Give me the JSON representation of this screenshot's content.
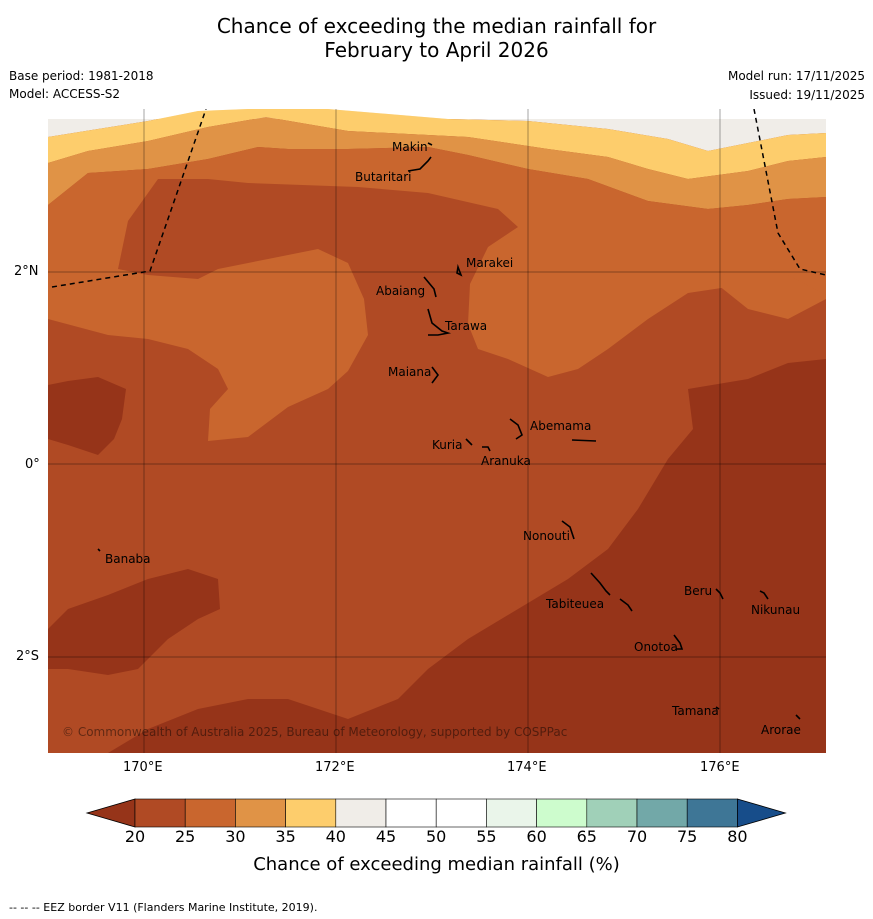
{
  "title_line1": "Chance of exceeding the median rainfall for",
  "title_line2": "February to April 2026",
  "meta": {
    "base_period": "Base period: 1981-2018",
    "model": "Model: ACCESS-S2",
    "model_run": "Model run: 17/11/2025",
    "issued": "Issued: 19/11/2025"
  },
  "axes": {
    "lat_ticks": [
      "2°N",
      "0°",
      "2°S"
    ],
    "lon_ticks": [
      "170°E",
      "172°E",
      "174°E",
      "176°E"
    ]
  },
  "places": {
    "makin": "Makin",
    "butaritari": "Butaritari",
    "marakei": "Marakei",
    "abaiang": "Abaiang",
    "tarawa": "Tarawa",
    "maiana": "Maiana",
    "abemama": "Abemama",
    "kuria": "Kuria",
    "aranuka": "Aranuka",
    "nonouti": "Nonouti",
    "banaba": "Banaba",
    "beru": "Beru",
    "tabiteuea": "Tabiteuea",
    "nikunau": "Nikunau",
    "onotoa": "Onotoa",
    "tamana": "Tamana",
    "arorae": "Arorae"
  },
  "copyright": "© Commonwealth of Australia 2025, Bureau of Meteorology, supported by COSPPac",
  "colorbar": {
    "ticks": [
      "20",
      "25",
      "30",
      "35",
      "40",
      "45",
      "50",
      "55",
      "60",
      "65",
      "70",
      "75",
      "80"
    ],
    "colors": [
      "#b04a24",
      "#c9662e",
      "#e09346",
      "#fdcd6c",
      "#f0ede8",
      "#ffffff",
      "#ffffff",
      "#eaf5ea",
      "#cdfccd",
      "#a0d0b8",
      "#72a8a8",
      "#3e7696"
    ],
    "under_color": "#963419",
    "over_color": "#174d8a",
    "title": "Chance of exceeding median rainfall (%)"
  },
  "footer": "--  --  -- EEZ border V11 (Flanders Marine Institute, 2019)."
}
